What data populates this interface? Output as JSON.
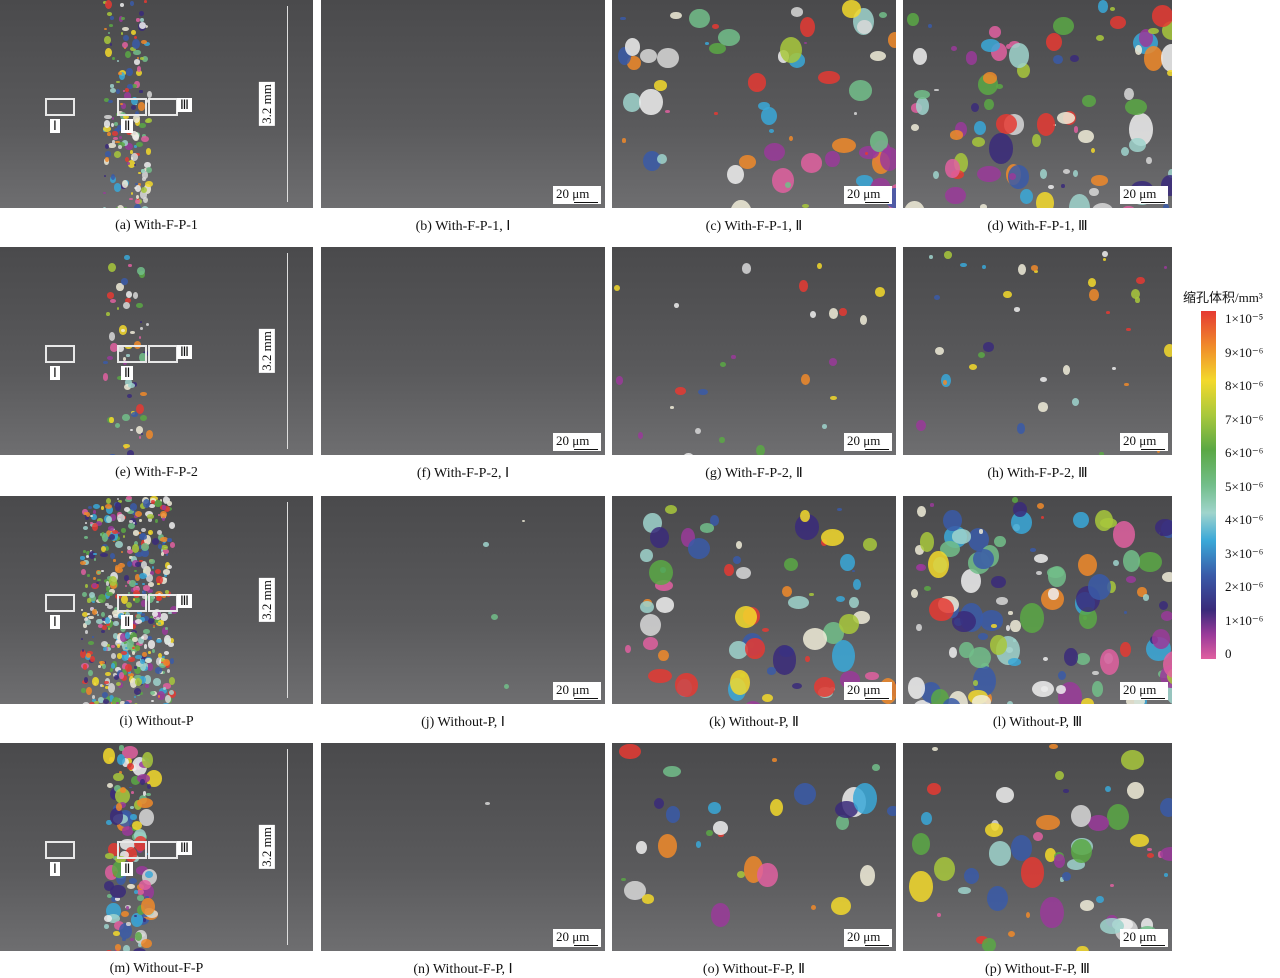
{
  "figure": {
    "rows": [
      {
        "captions": [
          "(a) With-F-P-1",
          "(b) With-F-P-1, Ⅰ",
          "(c) With-F-P-1, Ⅱ",
          "(d) With-F-P-1, Ⅲ"
        ]
      },
      {
        "captions": [
          "(e) With-F-P-2",
          "(f) With-F-P-2, Ⅰ",
          "(g) With-F-P-2, Ⅱ",
          "(h) With-F-P-2, Ⅲ"
        ]
      },
      {
        "captions": [
          "(i) Without-P",
          "(j) Without-P, Ⅰ",
          "(k) Without-P, Ⅱ",
          "(l) Without-P, Ⅲ"
        ]
      },
      {
        "captions": [
          "(m) Without-F-P",
          "(n) Without-F-P, Ⅰ",
          "(o) Without-F-P, Ⅱ",
          "(p) Without-F-P, Ⅲ"
        ]
      }
    ],
    "region_labels": [
      "Ⅰ",
      "Ⅱ",
      "Ⅲ"
    ],
    "height_label": "3.2 mm",
    "scale_bar_label": "20 μm"
  },
  "legend": {
    "title": "缩孔体积/mm³",
    "ticks": [
      "1×10⁻⁵",
      "9×10⁻⁶",
      "8×10⁻⁶",
      "7×10⁻⁶",
      "6×10⁻⁶",
      "5×10⁻⁶",
      "4×10⁻⁶",
      "3×10⁻⁶",
      "2×10⁻⁶",
      "1×10⁻⁶",
      "0"
    ],
    "colors": [
      "#e53a33",
      "#f08a2a",
      "#f3d92c",
      "#a8c83c",
      "#5aa845",
      "#72be8a",
      "#9fd4cc",
      "#3aa8d8",
      "#3a5aa8",
      "#3a2a7a",
      "#9a3a9a",
      "#e060a0"
    ]
  }
}
